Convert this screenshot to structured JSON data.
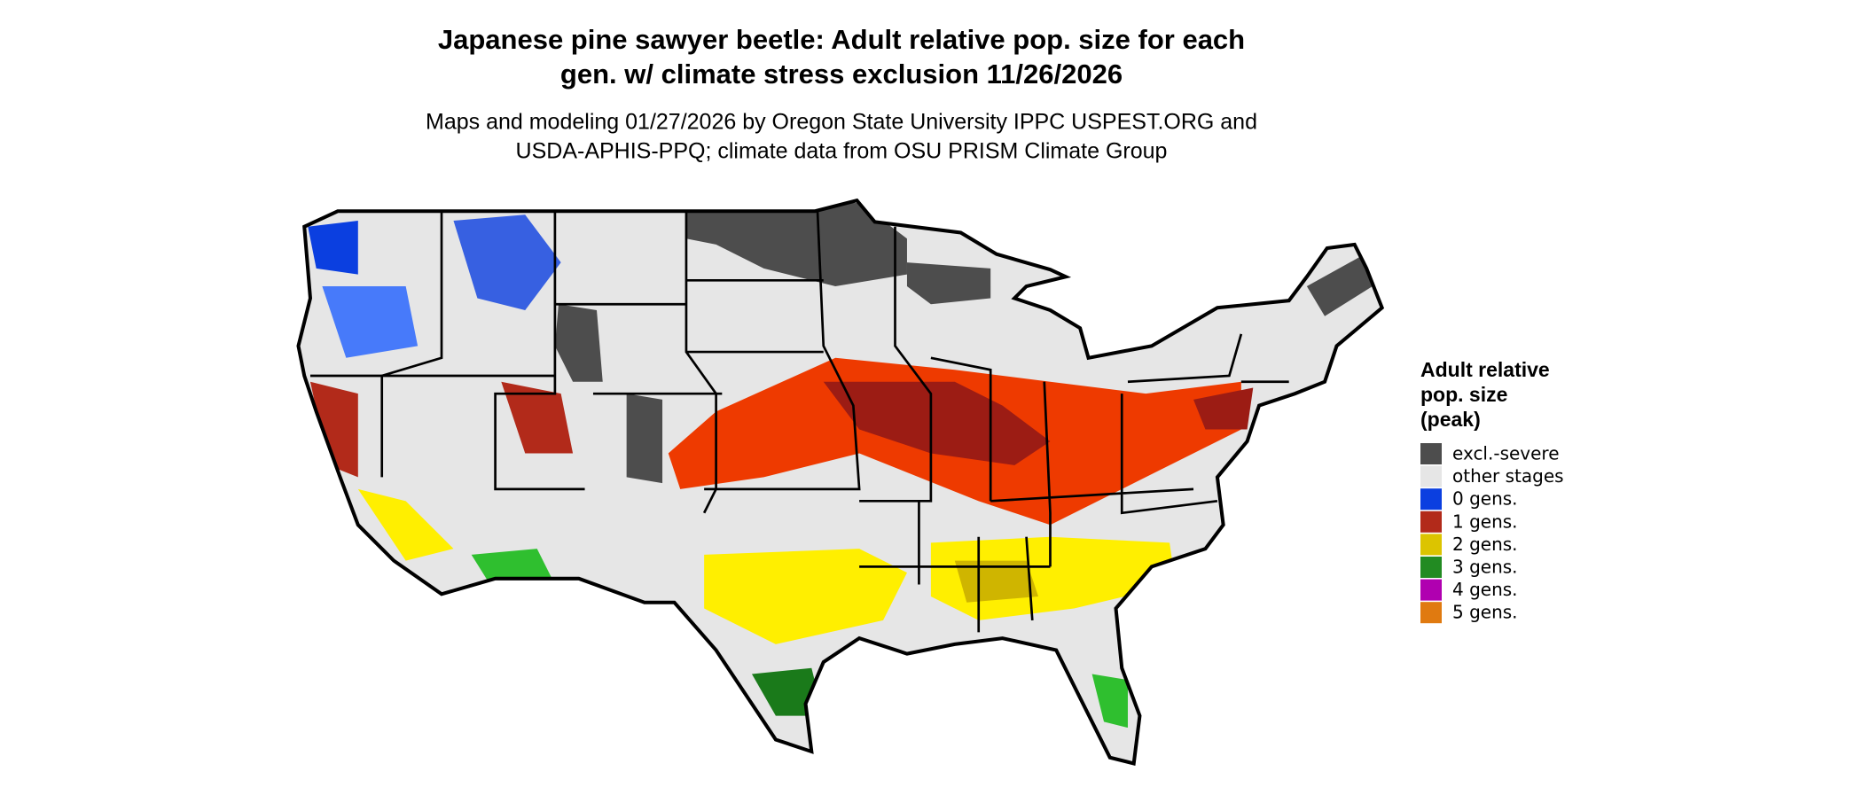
{
  "title_lines": [
    "Japanese pine sawyer beetle: Adult relative pop. size for each",
    "gen. w/ climate stress exclusion 11/26/2026"
  ],
  "subtitle_lines": [
    "Maps and modeling 01/27/2026 by Oregon State University IPPC USPEST.ORG and",
    "USDA-APHIS-PPQ; climate data from OSU PRISM Climate Group"
  ],
  "legend": {
    "title_lines": [
      "Adult relative",
      "pop. size",
      "(peak)"
    ],
    "items": [
      {
        "label": "excl.-severe",
        "color": "#4d4d4d"
      },
      {
        "label": "other stages",
        "color": "#e6e6e6"
      },
      {
        "label": "0 gens.",
        "color": "#0b3fe0"
      },
      {
        "label": "1 gens.",
        "color": "#b22a1a"
      },
      {
        "label": "2 gens.",
        "color": "#dcc400"
      },
      {
        "label": "3 gens.",
        "color": "#228b22"
      },
      {
        "label": "4 gens.",
        "color": "#b000b0"
      },
      {
        "label": "5 gens.",
        "color": "#e07a10"
      }
    ]
  }
}
